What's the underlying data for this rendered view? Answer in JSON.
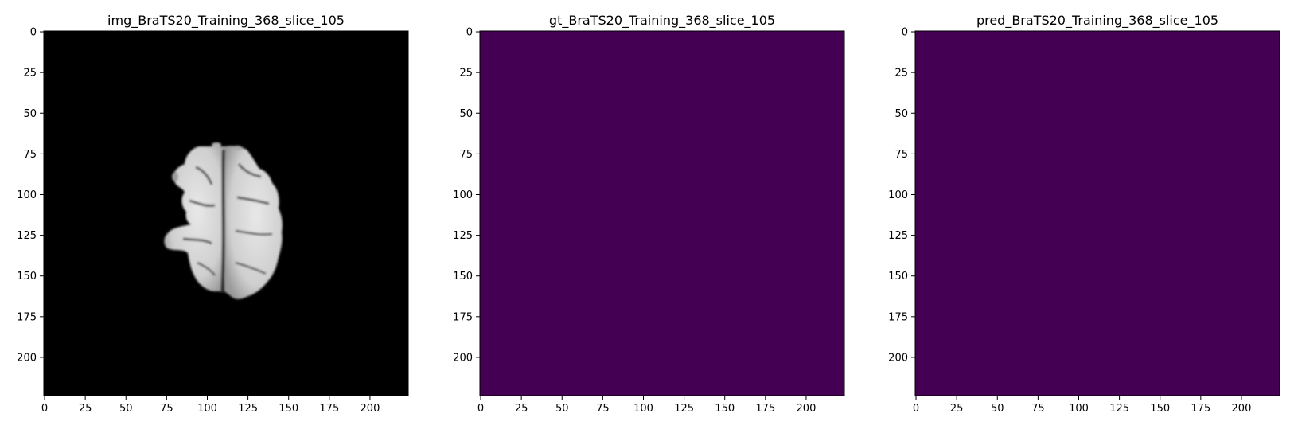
{
  "figure": {
    "panels": [
      {
        "title": "img_BraTS20_Training_368_slice_105",
        "kind": "mri",
        "background_color": "#000000",
        "x_ticks": [
          "0",
          "25",
          "50",
          "75",
          "100",
          "125",
          "150",
          "175",
          "200"
        ],
        "y_ticks": [
          "0",
          "25",
          "50",
          "75",
          "100",
          "125",
          "150",
          "175",
          "200"
        ]
      },
      {
        "title": "gt_BraTS20_Training_368_slice_105",
        "kind": "mask",
        "background_color": "#440154",
        "x_ticks": [
          "0",
          "25",
          "50",
          "75",
          "100",
          "125",
          "150",
          "175",
          "200"
        ],
        "y_ticks": [
          "0",
          "25",
          "50",
          "75",
          "100",
          "125",
          "150",
          "175",
          "200"
        ]
      },
      {
        "title": "pred_BraTS20_Training_368_slice_105",
        "kind": "mask",
        "background_color": "#440154",
        "x_ticks": [
          "0",
          "25",
          "50",
          "75",
          "100",
          "125",
          "150",
          "175",
          "200"
        ],
        "y_ticks": [
          "0",
          "25",
          "50",
          "75",
          "100",
          "125",
          "150",
          "175",
          "200"
        ]
      }
    ],
    "axis_range": [
      0,
      224
    ],
    "brain_colors": {
      "tissue_light": "#e2e2e2",
      "tissue_mid": "#b8b8b8",
      "sulcus": "#3a3a3a"
    }
  }
}
